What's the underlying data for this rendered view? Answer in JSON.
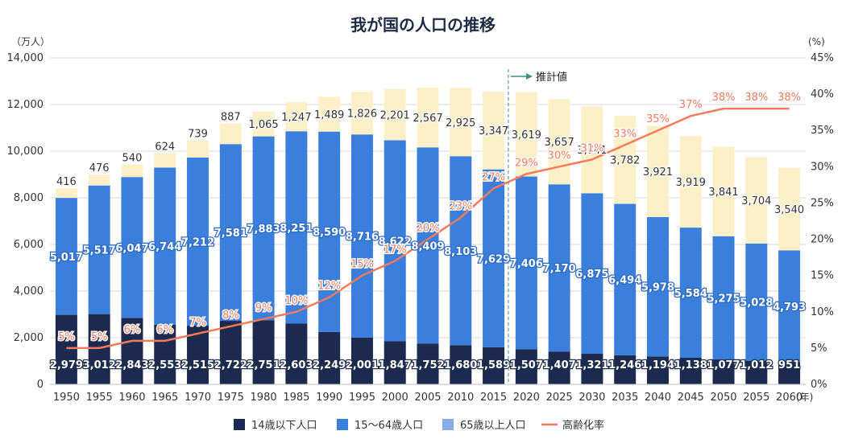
{
  "chart_data": {
    "type": "bar",
    "stacked": true,
    "title": "我が国の人口の推移",
    "y_unit_left": "（万人）",
    "y_unit_right": "(%)",
    "x_unit": "(年)",
    "projection_label": "推計値",
    "projection_start": "2020",
    "ylim": [
      0,
      14000
    ],
    "y2lim": [
      0,
      45
    ],
    "yticks": [
      "0",
      "2,000",
      "4,000",
      "6,000",
      "8,000",
      "10,000",
      "12,000",
      "14,000"
    ],
    "y2ticks": [
      "0%",
      "5%",
      "10%",
      "15%",
      "20%",
      "25%",
      "30%",
      "35%",
      "40%",
      "45%"
    ],
    "categories": [
      "1950",
      "1955",
      "1960",
      "1965",
      "1970",
      "1975",
      "1980",
      "1985",
      "1990",
      "1995",
      "2000",
      "2005",
      "2010",
      "2015",
      "2020",
      "2025",
      "2030",
      "2035",
      "2040",
      "2045",
      "2050",
      "2055",
      "2060"
    ],
    "series": [
      {
        "name": "14歳以下人口",
        "color": "#1b2a4e",
        "values": [
          2979,
          3012,
          2843,
          2553,
          2515,
          2722,
          2751,
          2603,
          2249,
          2001,
          1847,
          1752,
          1680,
          1589,
          1507,
          1407,
          1321,
          1246,
          1194,
          1138,
          1077,
          1012,
          951
        ],
        "labels": [
          "2,979",
          "3,012",
          "2,843",
          "2,553",
          "2,515",
          "2,722",
          "2,751",
          "2,603",
          "2,249",
          "2,001",
          "1,847",
          "1,752",
          "1,680",
          "1,589",
          "1,507",
          "1,407",
          "1,321",
          "1,246",
          "1,194",
          "1,138",
          "1,077",
          "1,012",
          "951"
        ]
      },
      {
        "name": "15～64歳人口",
        "color": "#3a7fdc",
        "values": [
          5017,
          5517,
          6047,
          6744,
          7212,
          7581,
          7883,
          8251,
          8590,
          8716,
          8622,
          8409,
          8103,
          7629,
          7406,
          7170,
          6875,
          6494,
          5978,
          5584,
          5275,
          5028,
          4793
        ],
        "labels": [
          "5,017",
          "5,517",
          "6,047",
          "6,744",
          "7,212",
          "7,581",
          "7,883",
          "8,251",
          "8,590",
          "8,716",
          "8,622",
          "8,409",
          "8,103",
          "7,629",
          "7,406",
          "7,170",
          "6,875",
          "6,494",
          "5,978",
          "5,584",
          "5,275",
          "5,028",
          "4,793"
        ]
      },
      {
        "name": "65歳以上人口",
        "color": "#fdf0c8",
        "legend_color": "#86acea",
        "values": [
          416,
          476,
          540,
          624,
          739,
          887,
          1065,
          1247,
          1489,
          1826,
          2201,
          2567,
          2925,
          3347,
          3619,
          3657,
          3741,
          3782,
          3921,
          3919,
          3841,
          3704,
          3540
        ],
        "labels": [
          "416",
          "476",
          "540",
          "624",
          "739",
          "887",
          "1,065",
          "1,247",
          "1,489",
          "1,826",
          "2,201",
          "2,567",
          "2,925",
          "3,347",
          "3,619",
          "3,657",
          "3,741",
          "3,782",
          "3,921",
          "3,919",
          "3,841",
          "3,704",
          "3,540"
        ]
      },
      {
        "name": "高齢化率",
        "type": "line",
        "axis": "right",
        "color": "#f37a5a",
        "values": [
          5,
          5,
          6,
          6,
          7,
          8,
          9,
          10,
          12,
          15,
          17,
          20,
          23,
          27,
          29,
          30,
          31,
          33,
          35,
          37,
          38,
          38,
          38
        ],
        "labels": [
          "5%",
          "5%",
          "6%",
          "6%",
          "7%",
          "8%",
          "9%",
          "10%",
          "12%",
          "15%",
          "17%",
          "20%",
          "23%",
          "27%",
          "29%",
          "30%",
          "31%",
          "33%",
          "35%",
          "37%",
          "38%",
          "38%",
          "38%"
        ]
      }
    ],
    "legend_position": "bottom",
    "grid": true
  }
}
